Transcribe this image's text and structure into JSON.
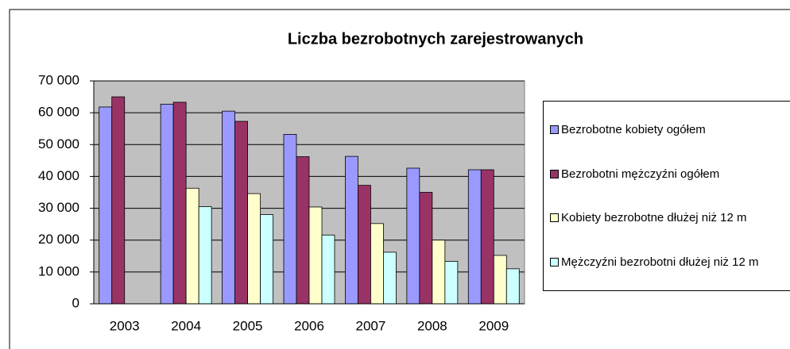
{
  "chart_data": {
    "type": "bar",
    "title": "Liczba bezrobotnych zarejestrowanych",
    "categories": [
      "2003",
      "2004",
      "2005",
      "2006",
      "2007",
      "2008",
      "2009"
    ],
    "series": [
      {
        "name": "Bezrobotne kobiety ogółem",
        "color": "#9999ff",
        "values": [
          61800,
          62700,
          60500,
          53200,
          46300,
          42600,
          42100
        ]
      },
      {
        "name": "Bezrobotni mężczyźni ogółem",
        "color": "#993366",
        "values": [
          65000,
          63300,
          57300,
          46200,
          37200,
          35000,
          42100
        ]
      },
      {
        "name": "Kobiety bezrobotne dłużej niż 12 m",
        "color": "#ffffcc",
        "values": [
          null,
          36300,
          34600,
          30400,
          25200,
          20000,
          15200
        ]
      },
      {
        "name": "Mężczyźni bezrobotni dłużej niż 12 m",
        "color": "#ccffff",
        "values": [
          null,
          30500,
          28000,
          21600,
          16200,
          13300,
          11000
        ]
      }
    ],
    "ylim": [
      0,
      70000
    ],
    "yticks": [
      0,
      {
        "value": 10000,
        "label": "10 000"
      },
      {
        "value": 20000,
        "label": "20 000"
      },
      {
        "value": 30000,
        "label": "30 000"
      },
      {
        "value": 40000,
        "label": "40 000"
      },
      {
        "value": 50000,
        "label": "50 000"
      },
      {
        "value": 60000,
        "label": "60 000"
      },
      {
        "value": 70000,
        "label": "70 000"
      }
    ],
    "grid": true,
    "legend": "right"
  }
}
